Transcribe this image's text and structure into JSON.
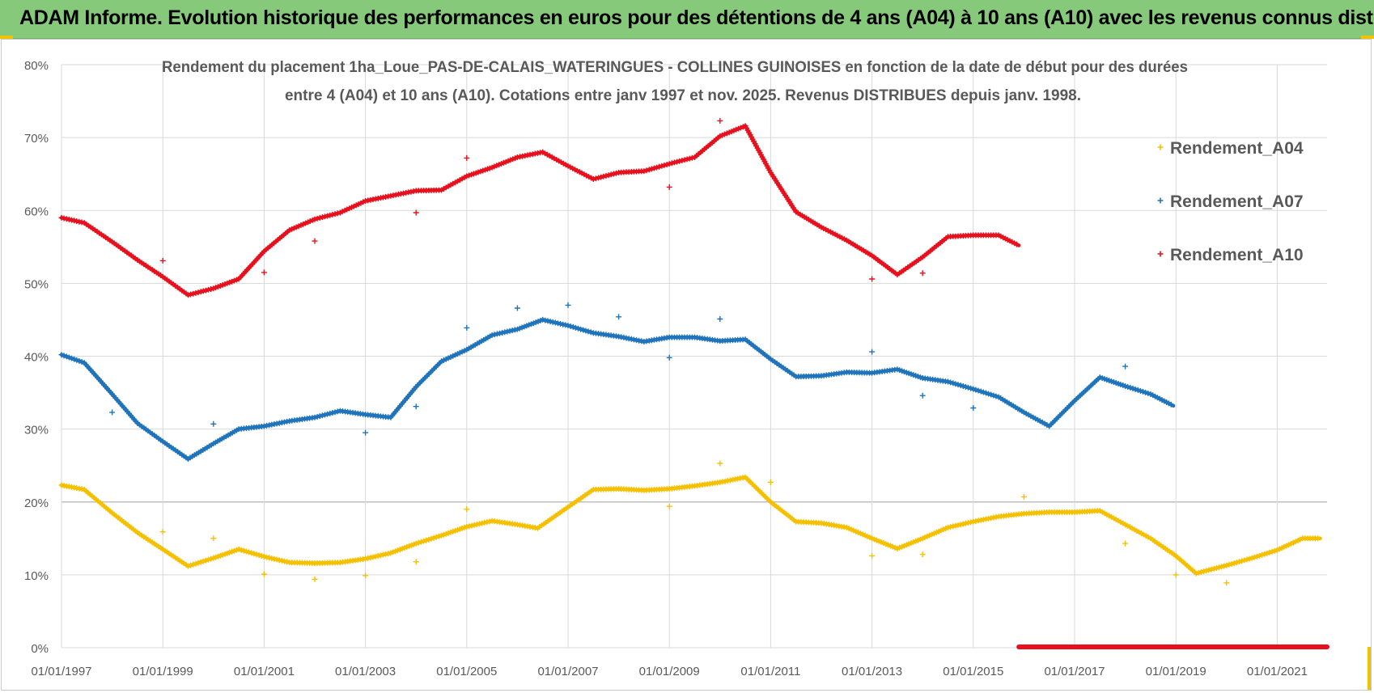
{
  "banner": {
    "title": "ADAM Informe. Evolution historique des performances en euros pour des détentions de 4 ans (A04) à 10 ans (A10) avec les revenus connus distribués"
  },
  "colors": {
    "banner_bg": "#86c97a",
    "A04": "#f5c000",
    "A07": "#1f74bc",
    "A10": "#e8101c",
    "grid": "#d9d9d9",
    "text": "#595959"
  },
  "chart_data": {
    "type": "line",
    "title_line1": "Rendement du placement 1ha_Loue_PAS-DE-CALAIS_WATERINGUES - COLLINES GUINOISES en fonction de la date de début pour des durées",
    "title_line2": "entre 4 (A04) et 10 ans (A10). Cotations entre janv 1997 et nov. 2025. Revenus DISTRIBUES depuis janv. 1998.",
    "xlabel": "",
    "ylabel": "",
    "x_range": [
      1997.0,
      2022.0
    ],
    "ylim": [
      0,
      80
    ],
    "x_tick_labels": [
      "01/01/1997",
      "01/01/1999",
      "01/01/2001",
      "01/01/2003",
      "01/01/2005",
      "01/01/2007",
      "01/01/2009",
      "01/01/2011",
      "01/01/2013",
      "01/01/2015",
      "01/01/2017",
      "01/01/2019",
      "01/01/2021"
    ],
    "x_tick_values": [
      1997,
      1999,
      2001,
      2003,
      2005,
      2007,
      2009,
      2011,
      2013,
      2015,
      2017,
      2019,
      2021
    ],
    "y_tick_labels": [
      "0%",
      "10%",
      "20%",
      "30%",
      "40%",
      "50%",
      "60%",
      "70%",
      "80%"
    ],
    "y_tick_values": [
      0,
      10,
      20,
      30,
      40,
      50,
      60,
      70,
      80
    ],
    "legend_position": "top-right",
    "series": [
      {
        "name": "Rendement_A04",
        "color": "#f5c000",
        "points": [
          [
            1997.0,
            22.3
          ],
          [
            1997.45,
            21.7
          ],
          [
            1998.0,
            18.5
          ],
          [
            1998.5,
            15.8
          ],
          [
            1999.0,
            13.5
          ],
          [
            1999.5,
            11.2
          ],
          [
            2000.0,
            12.3
          ],
          [
            2000.5,
            13.5
          ],
          [
            2001.0,
            12.5
          ],
          [
            2001.5,
            11.7
          ],
          [
            2002.0,
            11.6
          ],
          [
            2002.5,
            11.7
          ],
          [
            2003.0,
            12.2
          ],
          [
            2003.5,
            13.0
          ],
          [
            2004.0,
            14.3
          ],
          [
            2004.5,
            15.4
          ],
          [
            2005.0,
            16.6
          ],
          [
            2005.5,
            17.4
          ],
          [
            2006.0,
            16.9
          ],
          [
            2006.4,
            16.4
          ],
          [
            2007.0,
            19.3
          ],
          [
            2007.5,
            21.7
          ],
          [
            2008.0,
            21.8
          ],
          [
            2008.5,
            21.6
          ],
          [
            2009.0,
            21.8
          ],
          [
            2009.5,
            22.2
          ],
          [
            2010.0,
            22.7
          ],
          [
            2010.5,
            23.4
          ],
          [
            2011.0,
            20.0
          ],
          [
            2011.5,
            17.3
          ],
          [
            2012.0,
            17.1
          ],
          [
            2012.5,
            16.5
          ],
          [
            2013.0,
            15.0
          ],
          [
            2013.5,
            13.6
          ],
          [
            2014.0,
            15.0
          ],
          [
            2014.5,
            16.5
          ],
          [
            2015.0,
            17.3
          ],
          [
            2015.5,
            18.0
          ],
          [
            2016.0,
            18.4
          ],
          [
            2016.5,
            18.6
          ],
          [
            2017.0,
            18.6
          ],
          [
            2017.5,
            18.8
          ],
          [
            2018.0,
            16.9
          ],
          [
            2018.5,
            15.0
          ],
          [
            2019.0,
            12.6
          ],
          [
            2019.4,
            10.2
          ],
          [
            2020.0,
            11.3
          ],
          [
            2020.5,
            12.3
          ],
          [
            2021.0,
            13.4
          ],
          [
            2021.5,
            15.0
          ],
          [
            2021.85,
            15.0
          ]
        ],
        "outliers": [
          [
            1999.0,
            15.9
          ],
          [
            2000.0,
            15.0
          ],
          [
            2001.0,
            10.1
          ],
          [
            2002.0,
            9.4
          ],
          [
            2003.0,
            9.9
          ],
          [
            2004.0,
            11.8
          ],
          [
            2005.0,
            19.0
          ],
          [
            2009.0,
            19.4
          ],
          [
            2010.0,
            25.3
          ],
          [
            2011.0,
            22.7
          ],
          [
            2013.0,
            12.6
          ],
          [
            2014.0,
            12.8
          ],
          [
            2016.0,
            20.7
          ],
          [
            2018.0,
            14.3
          ],
          [
            2019.0,
            10.0
          ],
          [
            2020.0,
            8.9
          ]
        ]
      },
      {
        "name": "Rendement_A07",
        "color": "#1f74bc",
        "points": [
          [
            1997.0,
            40.2
          ],
          [
            1997.45,
            39.1
          ],
          [
            1998.0,
            34.8
          ],
          [
            1998.5,
            30.8
          ],
          [
            1999.0,
            28.3
          ],
          [
            1999.5,
            25.9
          ],
          [
            2000.0,
            28.0
          ],
          [
            2000.5,
            30.0
          ],
          [
            2001.0,
            30.4
          ],
          [
            2001.5,
            31.1
          ],
          [
            2002.0,
            31.6
          ],
          [
            2002.5,
            32.5
          ],
          [
            2003.0,
            32.0
          ],
          [
            2003.5,
            31.6
          ],
          [
            2004.0,
            35.8
          ],
          [
            2004.5,
            39.3
          ],
          [
            2005.0,
            40.9
          ],
          [
            2005.5,
            42.9
          ],
          [
            2006.0,
            43.7
          ],
          [
            2006.5,
            45.0
          ],
          [
            2007.0,
            44.2
          ],
          [
            2007.5,
            43.2
          ],
          [
            2008.0,
            42.7
          ],
          [
            2008.5,
            42.0
          ],
          [
            2009.0,
            42.6
          ],
          [
            2009.5,
            42.6
          ],
          [
            2010.0,
            42.1
          ],
          [
            2010.5,
            42.3
          ],
          [
            2011.0,
            39.6
          ],
          [
            2011.5,
            37.2
          ],
          [
            2012.0,
            37.3
          ],
          [
            2012.5,
            37.8
          ],
          [
            2013.0,
            37.7
          ],
          [
            2013.5,
            38.2
          ],
          [
            2014.0,
            37.0
          ],
          [
            2014.5,
            36.5
          ],
          [
            2015.0,
            35.5
          ],
          [
            2015.5,
            34.4
          ],
          [
            2016.0,
            32.3
          ],
          [
            2016.5,
            30.4
          ],
          [
            2017.0,
            33.9
          ],
          [
            2017.5,
            37.1
          ],
          [
            2018.0,
            35.9
          ],
          [
            2018.5,
            34.8
          ],
          [
            2018.95,
            33.2
          ]
        ],
        "outliers": [
          [
            1998.0,
            32.3
          ],
          [
            2000.0,
            30.7
          ],
          [
            2003.0,
            29.5
          ],
          [
            2004.0,
            33.1
          ],
          [
            2005.0,
            43.9
          ],
          [
            2006.0,
            46.6
          ],
          [
            2007.0,
            47.0
          ],
          [
            2008.0,
            45.4
          ],
          [
            2009.0,
            39.8
          ],
          [
            2010.0,
            45.1
          ],
          [
            2013.0,
            40.6
          ],
          [
            2014.0,
            34.6
          ],
          [
            2015.0,
            32.9
          ],
          [
            2018.0,
            38.6
          ]
        ]
      },
      {
        "name": "Rendement_A10",
        "color": "#e8101c",
        "points": [
          [
            1997.0,
            59.0
          ],
          [
            1997.45,
            58.3
          ],
          [
            1998.0,
            55.7
          ],
          [
            1998.5,
            53.2
          ],
          [
            1999.0,
            50.9
          ],
          [
            1999.5,
            48.4
          ],
          [
            2000.0,
            49.3
          ],
          [
            2000.5,
            50.6
          ],
          [
            2001.0,
            54.4
          ],
          [
            2001.5,
            57.3
          ],
          [
            2002.0,
            58.8
          ],
          [
            2002.5,
            59.7
          ],
          [
            2003.0,
            61.3
          ],
          [
            2003.5,
            62.0
          ],
          [
            2004.0,
            62.7
          ],
          [
            2004.5,
            62.8
          ],
          [
            2005.0,
            64.7
          ],
          [
            2005.5,
            65.9
          ],
          [
            2006.0,
            67.3
          ],
          [
            2006.5,
            68.0
          ],
          [
            2007.0,
            66.1
          ],
          [
            2007.5,
            64.3
          ],
          [
            2008.0,
            65.2
          ],
          [
            2008.5,
            65.4
          ],
          [
            2009.0,
            66.4
          ],
          [
            2009.5,
            67.3
          ],
          [
            2010.0,
            70.2
          ],
          [
            2010.5,
            71.6
          ],
          [
            2011.0,
            65.2
          ],
          [
            2011.5,
            59.8
          ],
          [
            2012.0,
            57.7
          ],
          [
            2012.5,
            55.9
          ],
          [
            2013.0,
            53.8
          ],
          [
            2013.5,
            51.2
          ],
          [
            2014.0,
            53.6
          ],
          [
            2014.5,
            56.4
          ],
          [
            2015.0,
            56.6
          ],
          [
            2015.5,
            56.6
          ],
          [
            2015.9,
            55.2
          ]
        ],
        "outliers": [
          [
            1999.0,
            53.1
          ],
          [
            2001.0,
            51.5
          ],
          [
            2002.0,
            55.8
          ],
          [
            2004.0,
            59.7
          ],
          [
            2005.0,
            67.2
          ],
          [
            2009.0,
            63.2
          ],
          [
            2010.0,
            72.3
          ],
          [
            2013.0,
            50.6
          ],
          [
            2014.0,
            51.4
          ]
        ]
      }
    ],
    "zero_band": {
      "series": "Rendement_A10",
      "x_start": 2015.9,
      "x_end": 2022.0,
      "value": 0
    }
  }
}
